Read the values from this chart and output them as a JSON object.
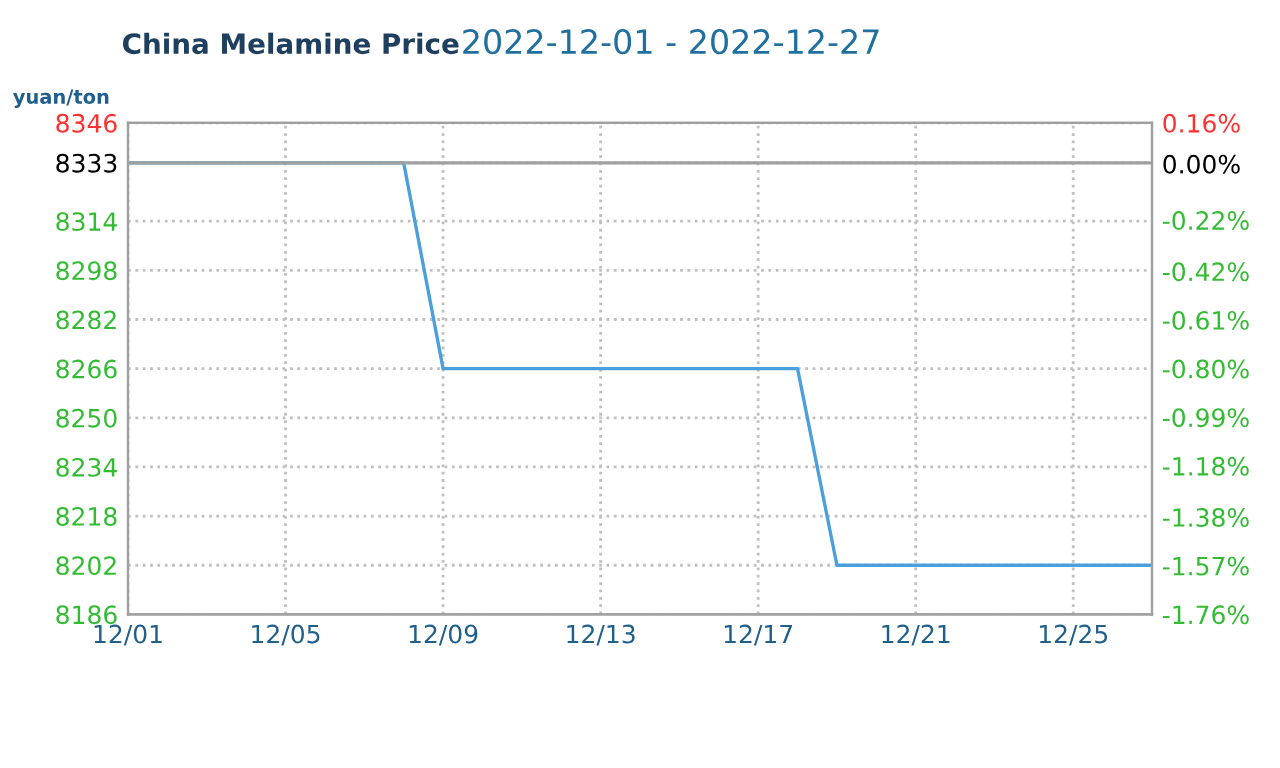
{
  "chart_data": {
    "type": "line",
    "title": "China Melamine Price",
    "subtitle": "2022-12-01 - 2022-12-27",
    "ylabel": "yuan/ton",
    "x": [
      "2022-12-01",
      "2022-12-08",
      "2022-12-09",
      "2022-12-18",
      "2022-12-19",
      "2022-12-27"
    ],
    "series": [
      {
        "color": "#4a9fdc",
        "values": [
          8333,
          8333,
          8266,
          8266,
          8202,
          8202
        ]
      }
    ],
    "xlim": [
      "2022-12-01",
      "2022-12-27"
    ],
    "xticks": [
      {
        "value": "2022-12-01",
        "label": "12/01"
      },
      {
        "value": "2022-12-05",
        "label": "12/05"
      },
      {
        "value": "2022-12-09",
        "label": "12/09"
      },
      {
        "value": "2022-12-13",
        "label": "12/13"
      },
      {
        "value": "2022-12-17",
        "label": "12/17"
      },
      {
        "value": "2022-12-21",
        "label": "12/21"
      },
      {
        "value": "2022-12-25",
        "label": "12/25"
      }
    ],
    "ylim": [
      8186,
      8346
    ],
    "yticks": [
      8186,
      8202,
      8218,
      8234,
      8250,
      8266,
      8282,
      8298,
      8314,
      8333,
      8346
    ],
    "y2lim": [
      -1.76,
      0.16
    ],
    "y2ticks": [
      {
        "value": -1.76,
        "label": "-1.76%"
      },
      {
        "value": -1.57,
        "label": "-1.57%"
      },
      {
        "value": -1.38,
        "label": "-1.38%"
      },
      {
        "value": -1.18,
        "label": "-1.18%"
      },
      {
        "value": -0.99,
        "label": "-0.99%"
      },
      {
        "value": -0.8,
        "label": "-0.80%"
      },
      {
        "value": -0.61,
        "label": "-0.61%"
      },
      {
        "value": -0.42,
        "label": "-0.42%"
      },
      {
        "value": -0.22,
        "label": "-0.22%"
      },
      {
        "value": 0,
        "label": "0.00%"
      },
      {
        "value": 0.16,
        "label": "0.16%"
      }
    ],
    "ref_lines": [
      {
        "axis": "y",
        "value": 8333,
        "color": "#a0a0a0"
      }
    ],
    "grid": true,
    "line_style": "solid",
    "marker": "none"
  }
}
